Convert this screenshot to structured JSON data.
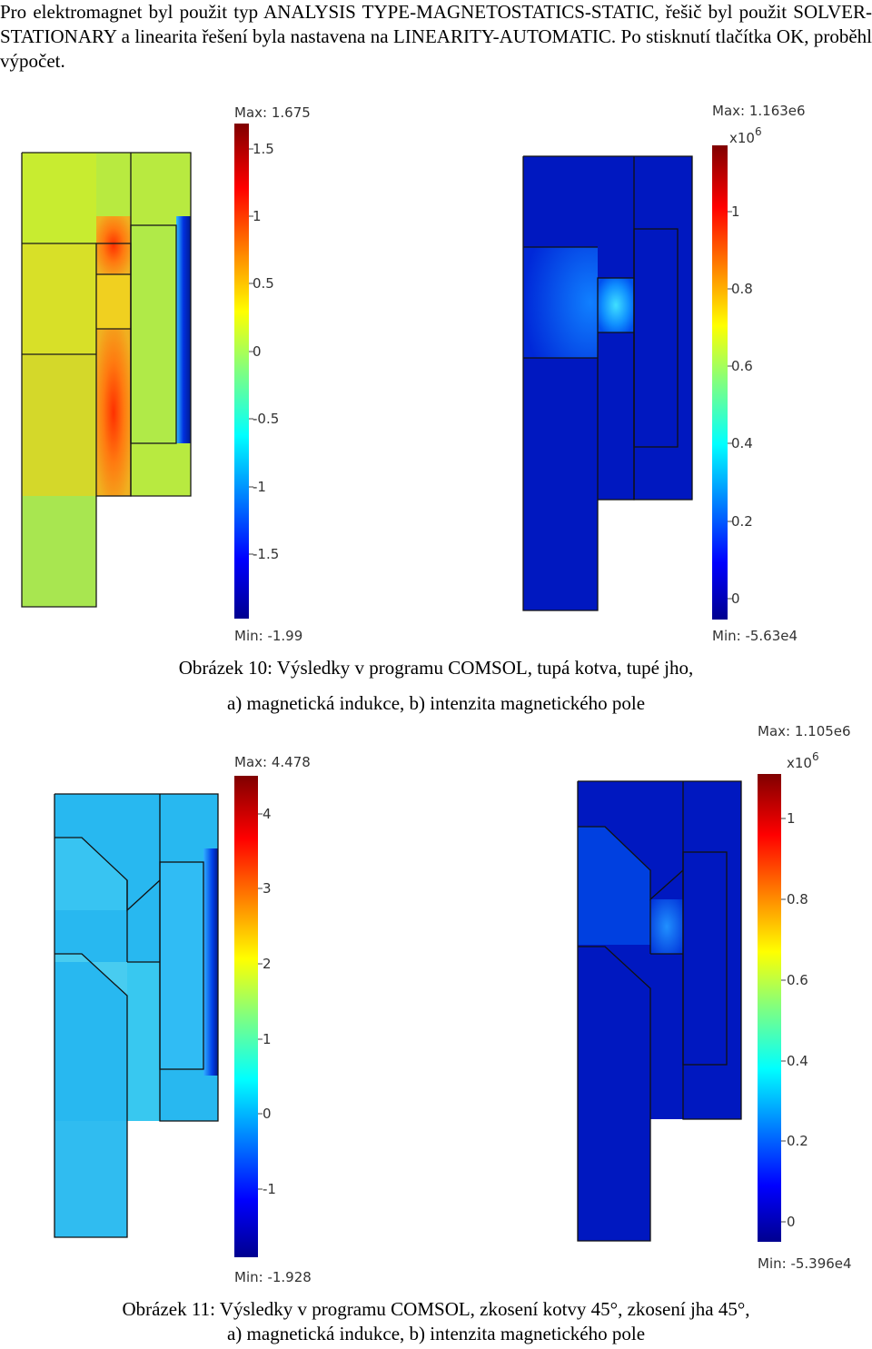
{
  "paragraph": "Pro elektromagnet byl použit typ ANALYSIS TYPE-MAGNETOSTATICS-STATIC, řešič byl použit SOLVER-STATIONARY a linearita řešení byla nastavena na LINEARITY-AUTOMATIC. Po stisknutí tlačítka OK, proběhl výpočet.",
  "figure10": {
    "caption_line1": "Obrázek 10: Výsledky v programu COMSOL, tupá kotva, tupé jho,",
    "caption_line2": "a) magnetická indukce, b) intenzita magnetického pole",
    "plot_a": {
      "max_label": "Max: 1.675",
      "min_label": "Min: -1.99",
      "ticks": [
        "1.5",
        "1",
        "0.5",
        "0",
        "-0.5",
        "-1",
        "-1.5"
      ]
    },
    "plot_b": {
      "max_label": "Max: 1.163e6",
      "multiplier": "x10",
      "exponent": "6",
      "min_label": "Min: -5.63e4",
      "ticks": [
        "1",
        "0.8",
        "0.6",
        "0.4",
        "0.2",
        "0"
      ]
    }
  },
  "figure11": {
    "caption_line1": "Obrázek 11: Výsledky v programu COMSOL, zkosení kotvy 45°, zkosení jha 45°,",
    "caption_line2": "a) magnetická indukce, b) intenzita magnetického pole",
    "plot_a": {
      "max_label": "Max: 4.478",
      "min_label": "Min: -1.928",
      "ticks": [
        "4",
        "3",
        "2",
        "1",
        "0",
        "-1"
      ]
    },
    "plot_b": {
      "max_label": "Max: 1.105e6",
      "multiplier": "x10",
      "exponent": "6",
      "min_label": "Min: -5.396e4",
      "ticks": [
        "1",
        "0.8",
        "0.6",
        "0.4",
        "0.2",
        "0"
      ]
    }
  }
}
